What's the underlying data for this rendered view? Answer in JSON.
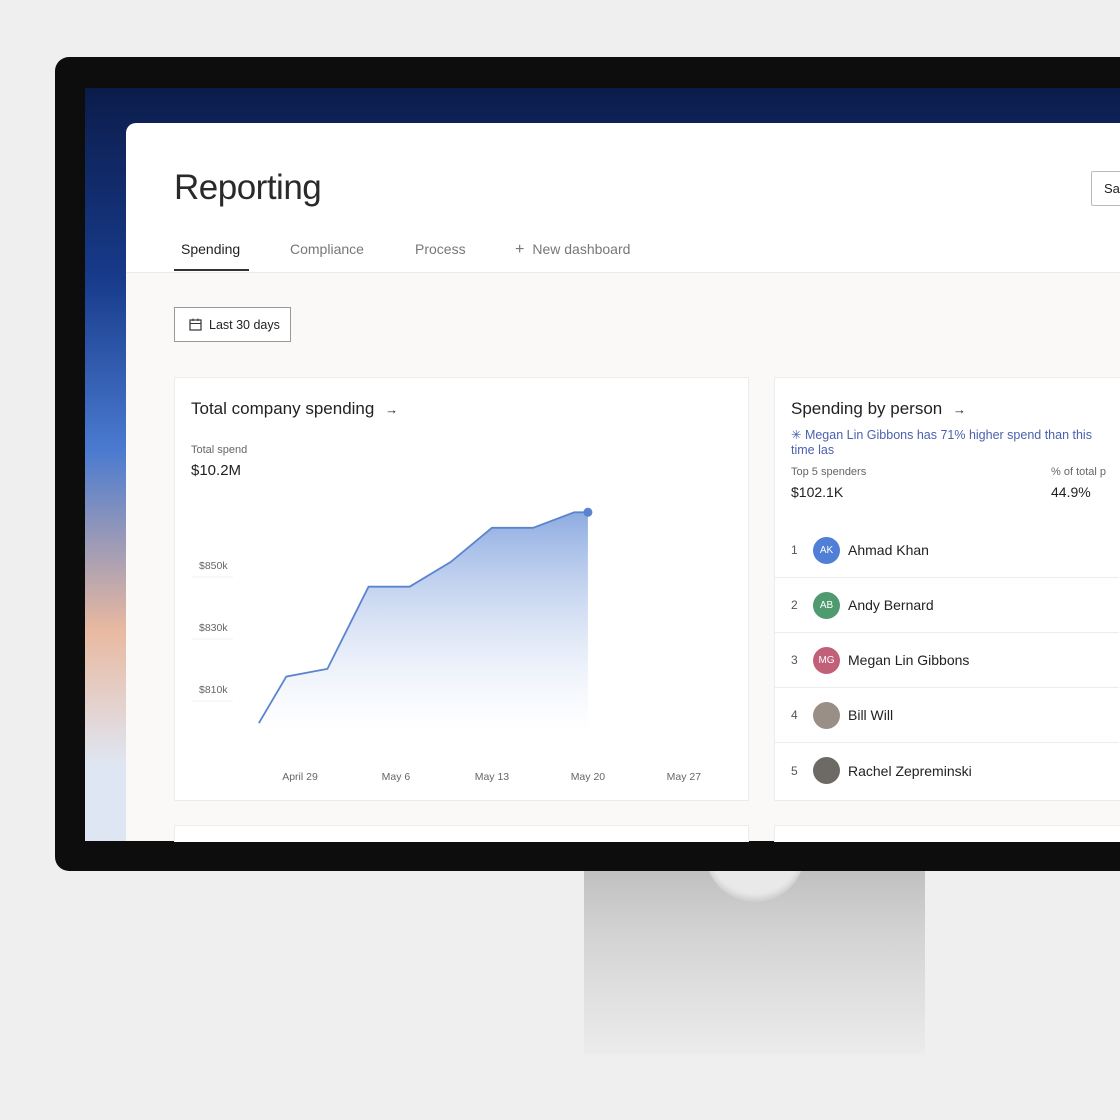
{
  "header": {
    "title": "Reporting",
    "save_label": "Sa"
  },
  "tabs": [
    {
      "label": "Spending",
      "active": true
    },
    {
      "label": "Compliance"
    },
    {
      "label": "Process"
    },
    {
      "label": "New dashboard",
      "icon": "plus-icon"
    }
  ],
  "filter": {
    "label": "Last 30 days",
    "icon": "calendar-icon"
  },
  "spending_card": {
    "title": "Total company spending",
    "arrow": "→",
    "metric_label": "Total spend",
    "metric_value": "$10.2M"
  },
  "chart_data": {
    "type": "area",
    "title": "",
    "y_ticks": [
      "$850k",
      "$830k",
      "$810k"
    ],
    "x_ticks": [
      "April 29",
      "May 6",
      "May 13",
      "May 20",
      "May 27"
    ],
    "x": [
      "Apr 26",
      "Apr 28",
      "May 1",
      "May 4",
      "May 7",
      "May 10",
      "May 13",
      "May 16",
      "May 19",
      "May 20"
    ],
    "values": [
      799,
      814,
      816.5,
      843,
      843,
      851,
      862,
      862,
      867,
      867
    ],
    "ylabel": "",
    "xlabel": "",
    "units": "$k",
    "color": "#5b84d0"
  },
  "person_card": {
    "title": "Spending by person",
    "arrow": "→",
    "insight": "✳ Megan Lin Gibbons has 71% higher spend than this time las",
    "top_label": "Top 5 spenders",
    "top_value": "$102.1K",
    "pct_label": "% of total p",
    "pct_value": "44.9%",
    "people": [
      {
        "rank": "1",
        "initials": "AK",
        "name": "Ahmad Khan",
        "color": "#4f7fd6"
      },
      {
        "rank": "2",
        "initials": "AB",
        "name": "Andy Bernard",
        "color": "#4f9a6e"
      },
      {
        "rank": "3",
        "initials": "MG",
        "name": "Megan Lin Gibbons",
        "color": "#c2607a"
      },
      {
        "rank": "4",
        "initials": "",
        "name": "Bill Will",
        "color": "#9a8f86"
      },
      {
        "rank": "5",
        "initials": "",
        "name": "Rachel Zepreminski",
        "color": "#6d6a66"
      }
    ]
  }
}
